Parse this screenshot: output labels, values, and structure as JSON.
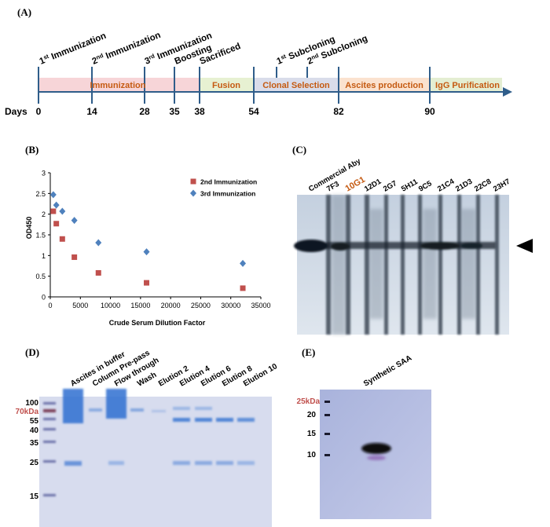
{
  "panels": {
    "a": "(A)",
    "b": "(B)",
    "c": "(C)",
    "d": "(D)",
    "e": "(E)"
  },
  "timeline": {
    "days_label": "Days",
    "events": [
      {
        "base": "1",
        "sup": "st",
        "text": " Immunization",
        "day": "0"
      },
      {
        "base": "2",
        "sup": "nd",
        "text": " Immunization",
        "day": "14"
      },
      {
        "base": "3",
        "sup": "rd",
        "text": " Immunization",
        "day": "28"
      },
      {
        "base": "",
        "sup": "",
        "text": "Boosting",
        "day": "35"
      },
      {
        "base": "",
        "sup": "",
        "text": "Sacrificed",
        "day": "38"
      },
      {
        "base": "1",
        "sup": "st",
        "text": " Subcloning",
        "day": ""
      },
      {
        "base": "2",
        "sup": "nd",
        "text": " Subcloning",
        "day": ""
      }
    ],
    "ticks": [
      "0",
      "14",
      "28",
      "35",
      "38",
      "54",
      "82",
      "90"
    ],
    "phases": [
      {
        "label": "Immunization",
        "color": "#f7d5d8"
      },
      {
        "label": "Fusion",
        "color": "#e7f1d2"
      },
      {
        "label": "Clonal Selection",
        "color": "#d9dcea"
      },
      {
        "label": "Ascites production",
        "color": "#fbe2cf"
      },
      {
        "label": "IgG Purification",
        "color": "#e4eed2"
      }
    ],
    "axis_color": "#2f5d8a",
    "text_color": "#c55a11"
  },
  "chart_data": {
    "type": "scatter",
    "xlabel": "Crude Serum Dilution Factor",
    "ylabel": "OD450",
    "xlim": [
      0,
      35000
    ],
    "ylim": [
      0,
      3
    ],
    "xticks": [
      "0",
      "5000",
      "10000",
      "15000",
      "20000",
      "25000",
      "30000",
      "35000"
    ],
    "yticks": [
      "0",
      "0.5",
      "1",
      "1.5",
      "2",
      "2.5",
      "3"
    ],
    "legend_position": "top-right",
    "series": [
      {
        "name": "2nd Immunization",
        "color": "#c0504d",
        "marker": "square",
        "x": [
          500,
          1000,
          2000,
          4000,
          8000,
          16000,
          32000
        ],
        "y": [
          2.07,
          1.77,
          1.4,
          0.96,
          0.58,
          0.34,
          0.21
        ]
      },
      {
        "name": "3rd Immunization",
        "color": "#4f81bd",
        "marker": "diamond",
        "x": [
          500,
          1000,
          2000,
          4000,
          8000,
          16000,
          32000
        ],
        "y": [
          2.47,
          2.22,
          2.07,
          1.85,
          1.31,
          1.09,
          0.81
        ]
      }
    ]
  },
  "western_c": {
    "lanes": [
      "Commercial Aby",
      "7F3",
      "10G1",
      "12D1",
      "2G7",
      "5H11",
      "9C5",
      "21C4",
      "21D3",
      "22C8",
      "23H7"
    ],
    "highlight": "10G1",
    "highlight_color": "#c55a11"
  },
  "gel_d": {
    "lanes": [
      "Ascites  in buffer",
      "Column Pre-pass",
      "Flow through",
      "Wash",
      "Elution 2",
      "Elution 4",
      "Elution 6",
      "Elution 8",
      "Elution 10"
    ],
    "markers": [
      "100",
      "70kDa",
      "55",
      "40",
      "35",
      "25",
      "15"
    ],
    "marker_highlight": "70kDa"
  },
  "blot_e": {
    "lane": "Synthetic SAA",
    "markers": [
      "25kDa",
      "20",
      "15",
      "10"
    ],
    "marker_highlight": "25kDa"
  }
}
